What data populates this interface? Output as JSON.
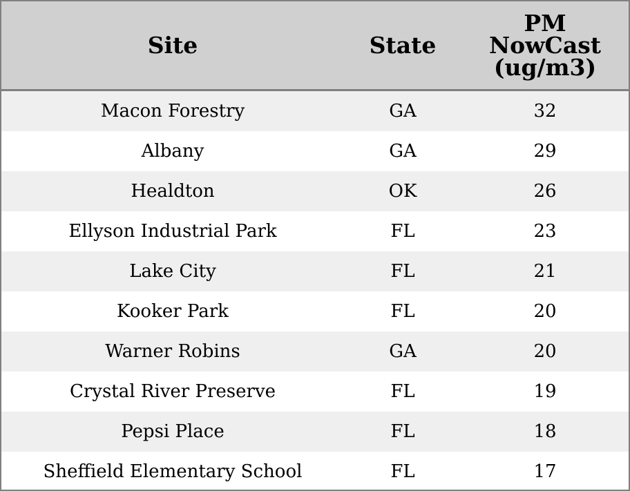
{
  "chart_data": {
    "type": "table",
    "columns": [
      "Site",
      "State",
      "PM\nNowCast\n(ug/m3)"
    ],
    "rows": [
      {
        "site": "Macon Forestry",
        "state": "GA",
        "value": "32"
      },
      {
        "site": "Albany",
        "state": "GA",
        "value": "29"
      },
      {
        "site": "Healdton",
        "state": "OK",
        "value": "26"
      },
      {
        "site": "Ellyson Industrial Park",
        "state": "FL",
        "value": "23"
      },
      {
        "site": "Lake City",
        "state": "FL",
        "value": "21"
      },
      {
        "site": "Kooker Park",
        "state": "FL",
        "value": "20"
      },
      {
        "site": "Warner Robins",
        "state": "GA",
        "value": "20"
      },
      {
        "site": "Crystal River Preserve",
        "state": "FL",
        "value": "19"
      },
      {
        "site": "Pepsi Place",
        "state": "FL",
        "value": "18"
      },
      {
        "site": "Sheffield Elementary School",
        "state": "FL",
        "value": "17"
      }
    ],
    "colors": {
      "header_background": "#d0d0d0",
      "stripe_background": "#efefef",
      "border": "#808080"
    }
  }
}
